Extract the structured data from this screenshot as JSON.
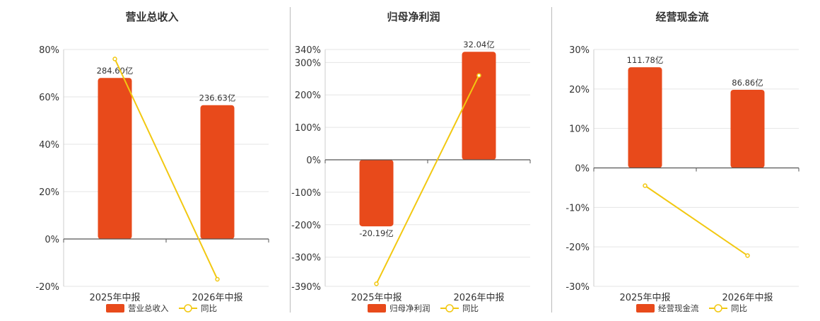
{
  "charts": [
    {
      "type": "bar",
      "title": "营业总收入",
      "categories": [
        "2025年中报",
        "2026年中报"
      ],
      "ylim": [
        -20,
        80
      ],
      "yticks": [
        80,
        60,
        40,
        20,
        0,
        -20
      ],
      "yticklabels": [
        "80%",
        "60%",
        "40%",
        "20%",
        "0%",
        "-20%"
      ],
      "bar_values": [
        68,
        56.5
      ],
      "bar_labels": [
        "284.60亿",
        "236.63亿"
      ],
      "line_values": [
        76,
        -17
      ],
      "legend": [
        "营业总收入",
        "同比"
      ]
    },
    {
      "type": "bar",
      "title": "归母净利润",
      "categories": [
        "2025年中报",
        "2026年中报"
      ],
      "ylim": [
        -390,
        340
      ],
      "yticks": [
        340,
        300,
        200,
        100,
        0,
        -100,
        -200,
        -300,
        -390
      ],
      "yticklabels": [
        "340%",
        "300%",
        "200%",
        "100%",
        "0%",
        "-100%",
        "-200%",
        "-300%",
        "-390%"
      ],
      "bar_values": [
        -205,
        333
      ],
      "bar_labels": [
        "-20.19亿",
        "32.04亿"
      ],
      "line_values": [
        -382,
        260
      ],
      "legend": [
        "归母净利润",
        "同比"
      ]
    },
    {
      "type": "bar",
      "title": "经营现金流",
      "categories": [
        "2025年中报",
        "2026年中报"
      ],
      "ylim": [
        -30,
        30
      ],
      "yticks": [
        30,
        20,
        10,
        0,
        -10,
        -20,
        -30
      ],
      "yticklabels": [
        "30%",
        "20%",
        "10%",
        "0%",
        "-10%",
        "-20%",
        "-30%"
      ],
      "bar_values": [
        25.5,
        19.8
      ],
      "bar_labels": [
        "111.78亿",
        "86.86亿"
      ],
      "line_values": [
        -4.5,
        -22.2
      ],
      "legend": [
        "经营现金流",
        "同比"
      ]
    }
  ],
  "colors": {
    "bar": "#E84A1B",
    "line": "#F2C811",
    "grid": "#e5e5e5",
    "axis": "#555555"
  }
}
